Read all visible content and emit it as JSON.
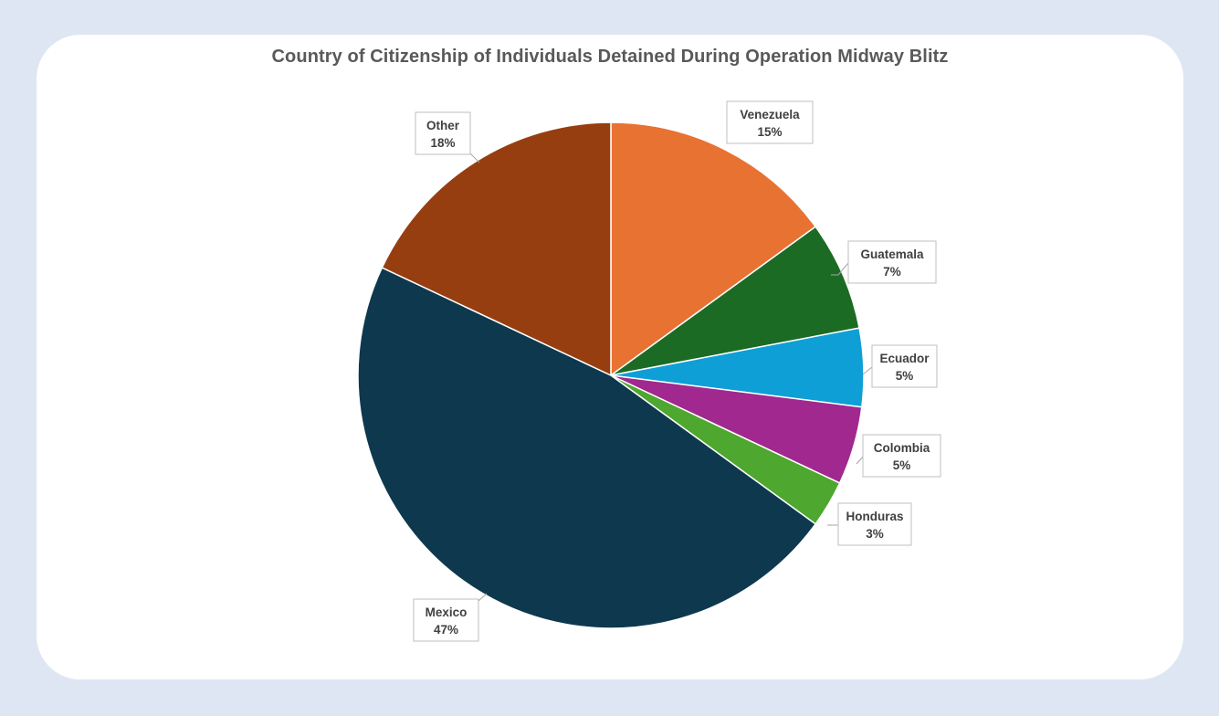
{
  "chart_data": {
    "type": "pie",
    "title": "Country of Citizenship of Individuals Detained During Operation Midway Blitz",
    "slices": [
      {
        "label": "Venezuela",
        "value": 15,
        "display": "15%",
        "color": "#e87232"
      },
      {
        "label": "Guatemala",
        "value": 7,
        "display": "7%",
        "color": "#1b6b25"
      },
      {
        "label": "Ecuador",
        "value": 5,
        "display": "5%",
        "color": "#0f9fd7"
      },
      {
        "label": "Colombia",
        "value": 5,
        "display": "5%",
        "color": "#a0288f"
      },
      {
        "label": "Honduras",
        "value": 3,
        "display": "3%",
        "color": "#4ea72e"
      },
      {
        "label": "Mexico",
        "value": 47,
        "display": "47%",
        "color": "#0e384d"
      },
      {
        "label": "Other",
        "value": 18,
        "display": "18%",
        "color": "#963e10"
      }
    ],
    "legend": "none"
  }
}
